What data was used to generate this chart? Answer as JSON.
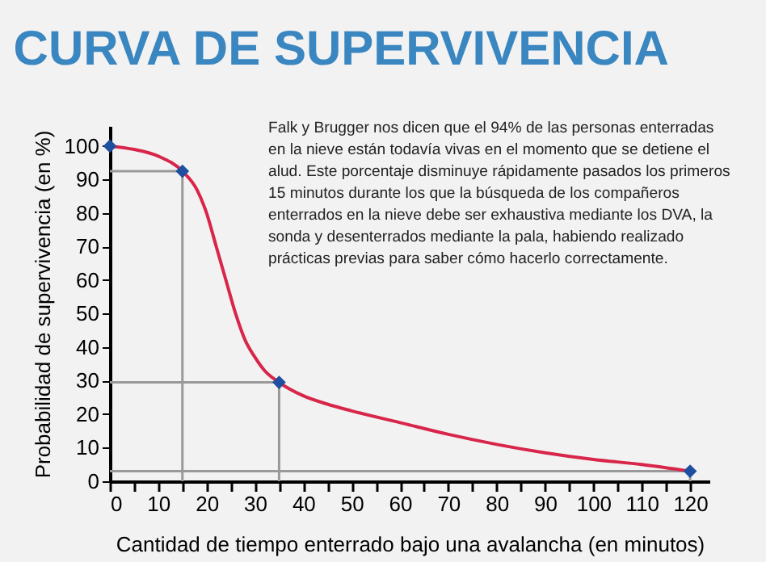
{
  "chart_data": {
    "type": "line",
    "title": "CURVA DE SUPERVIVENCIA",
    "xlabel": "Cantidad de tiempo enterrado bajo una avalancha (en minutos)",
    "ylabel": "Probabilidad de supervivencia (en %)",
    "xlim": [
      0,
      124
    ],
    "ylim": [
      0,
      106
    ],
    "xticks": [
      0,
      {
        "value": 5,
        "label": null
      },
      10,
      {
        "value": 15,
        "label": null
      },
      20,
      {
        "value": 25,
        "label": null
      },
      30,
      {
        "value": 35,
        "label": null
      },
      40,
      {
        "value": 45,
        "label": null
      },
      50,
      {
        "value": 55,
        "label": null
      },
      60,
      {
        "value": 65,
        "label": null
      },
      70,
      {
        "value": 75,
        "label": null
      },
      80,
      {
        "value": 85,
        "label": null
      },
      90,
      {
        "value": 95,
        "label": null
      },
      100,
      {
        "value": 105,
        "label": null
      },
      110,
      {
        "value": 115,
        "label": null
      },
      120
    ],
    "yticks": [
      0,
      10,
      20,
      30,
      40,
      50,
      60,
      70,
      80,
      90,
      100
    ],
    "grid": false,
    "series": [
      {
        "color": "#999999",
        "x": [
          0,
          15,
          15
        ],
        "values": [
          92.5,
          92.5,
          0
        ],
        "marker": "none",
        "line_style": "solid"
      },
      {
        "color": "#999999",
        "x": [
          0,
          35,
          35
        ],
        "values": [
          29.5,
          29.5,
          0
        ],
        "marker": "none",
        "line_style": "solid"
      },
      {
        "color": "#999999",
        "x": [
          0,
          120,
          120
        ],
        "values": [
          3,
          3,
          0
        ],
        "marker": "none",
        "line_style": "solid"
      },
      {
        "line_style": "solid",
        "color": "#d8264a",
        "x": [
          0,
          5,
          10,
          15,
          18,
          20,
          22,
          24,
          26,
          28,
          30,
          32,
          35,
          40,
          45,
          50,
          60,
          70,
          80,
          90,
          100,
          110,
          120
        ],
        "values": [
          100,
          99,
          97,
          92.5,
          87,
          80,
          70,
          60,
          50,
          42,
          37,
          33,
          29.5,
          25.5,
          23,
          21,
          17.5,
          14,
          11,
          8.5,
          6.5,
          5,
          3
        ],
        "marker": "none"
      },
      {
        "type": "scatter",
        "color": "#1f4fa0",
        "x": [
          0,
          15,
          35,
          120
        ],
        "values": [
          100,
          92.5,
          29.5,
          3
        ],
        "marker": "diamond"
      }
    ],
    "annotations": [
      "Falk y Brugger nos dicen que el 94% de las personas enterradas en la nieve están todavía vivas en el momento que se detiene el alud. Este porcentaje disminuye rápidamente pasados los primeros 15 minutos durante los que la búsqueda de los compañeros enterrados en la nieve debe ser exhaustiva mediante los DVA, la sonda y desenterrados mediante la pala, habiendo realizado prácticas previas para saber cómo hacerlo correctamente."
    ]
  }
}
